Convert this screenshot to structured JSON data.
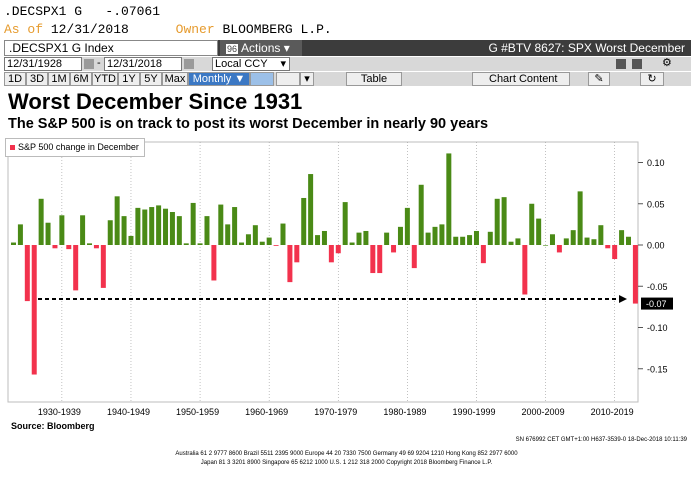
{
  "header": {
    "ticker": ".DECSPX1 G",
    "value": "-.07061",
    "as_of_label": "As of",
    "as_of_date": "12/31/2018",
    "owner_label": "Owner",
    "owner_name": "BLOOMBERG L.P."
  },
  "titlebar": {
    "security": ".DECSPX1 G Index",
    "actions_num": "96",
    "actions_label": "Actions",
    "chart_title": "G #BTV 8627: SPX Worst December"
  },
  "controls": {
    "start_date": "12/31/1928",
    "end_date": "12/31/2018",
    "currency": "Local CCY",
    "periods": [
      "1D",
      "3D",
      "1M",
      "6M",
      "YTD",
      "1Y",
      "5Y",
      "Max"
    ],
    "frequency": "Monthly",
    "table_label": "Table",
    "chart_content_label": "Chart Content"
  },
  "headline": "Worst December Since 1931",
  "subheadline": "The S&P 500 is on track to post its worst December in nearly 90 years",
  "source": "Source: Bloomberg",
  "footer": {
    "stamp": "SN 676992 CET  GMT+1:00 H637-3539-0 18-Dec-2018 10:11:39",
    "line1": "Australia 61 2 9777 8600 Brazil 5511 2395 9000 Europe 44 20 7330 7500 Germany 49 69 9204 1210 Hong Kong 852 2977 6000",
    "line2": "Japan 81 3 3201 8900     Singapore 65 6212 1000     U.S. 1 212 318 2000     Copyright 2018 Bloomberg Finance L.P."
  },
  "colors": {
    "positive": "#4a8a16",
    "negative": "#f2324d",
    "header_bg": "#3c3c3c",
    "accent": "#e69b2e"
  },
  "chart_data": {
    "type": "bar",
    "series_name": "S&P 500 change in December",
    "x": [
      1928,
      1929,
      1930,
      1931,
      1932,
      1933,
      1934,
      1935,
      1936,
      1937,
      1938,
      1939,
      1940,
      1941,
      1942,
      1943,
      1944,
      1945,
      1946,
      1947,
      1948,
      1949,
      1950,
      1951,
      1952,
      1953,
      1954,
      1955,
      1956,
      1957,
      1958,
      1959,
      1960,
      1961,
      1962,
      1963,
      1964,
      1965,
      1966,
      1967,
      1968,
      1969,
      1970,
      1971,
      1972,
      1973,
      1974,
      1975,
      1976,
      1977,
      1978,
      1979,
      1980,
      1981,
      1982,
      1983,
      1984,
      1985,
      1986,
      1987,
      1988,
      1989,
      1990,
      1991,
      1992,
      1993,
      1994,
      1995,
      1996,
      1997,
      1998,
      1999,
      2000,
      2001,
      2002,
      2003,
      2004,
      2005,
      2006,
      2007,
      2008,
      2009,
      2010,
      2011,
      2012,
      2013,
      2014,
      2015,
      2016,
      2017,
      2018
    ],
    "values": [
      0.003,
      0.025,
      -0.068,
      -0.157,
      0.056,
      0.027,
      -0.004,
      0.036,
      -0.005,
      -0.055,
      0.036,
      0.002,
      -0.004,
      -0.052,
      0.03,
      0.059,
      0.035,
      0.011,
      0.045,
      0.043,
      0.046,
      0.048,
      0.044,
      0.04,
      0.035,
      0.002,
      0.051,
      0.002,
      0.035,
      -0.043,
      0.049,
      0.025,
      0.046,
      0.003,
      0.013,
      0.024,
      0.004,
      0.009,
      -0.001,
      0.026,
      -0.045,
      -0.021,
      0.057,
      0.086,
      0.012,
      0.017,
      -0.021,
      -0.01,
      0.052,
      0.003,
      0.015,
      0.017,
      -0.034,
      -0.034,
      0.015,
      -0.009,
      0.022,
      0.045,
      -0.028,
      0.073,
      0.015,
      0.022,
      0.025,
      0.111,
      0.01,
      0.01,
      0.012,
      0.017,
      -0.022,
      0.016,
      0.056,
      0.058,
      0.004,
      0.008,
      -0.06,
      0.05,
      0.032,
      0,
      0.013,
      -0.009,
      0.008,
      0.018,
      0.065,
      0.009,
      0.007,
      0.024,
      -0.004,
      -0.017,
      0.018,
      0.01,
      -0.071
    ],
    "x_tick_labels": [
      "1930-1939",
      "1940-1949",
      "1950-1959",
      "1960-1969",
      "1970-1979",
      "1980-1989",
      "1990-1999",
      "2000-2009",
      "2010-2019"
    ],
    "y_ticks": [
      0.1,
      0.05,
      0.0,
      -0.05,
      -0.1,
      -0.15
    ],
    "y_tick_labels": [
      "0.10",
      "0.05",
      "0.00",
      "-0.05",
      "-0.10",
      "-0.15"
    ],
    "ylim": [
      -0.168,
      0.115
    ],
    "last_value_label": "-0.07",
    "reference_line_value": -0.0655,
    "legend_position": "top-left",
    "grid": "vertical dotted"
  }
}
